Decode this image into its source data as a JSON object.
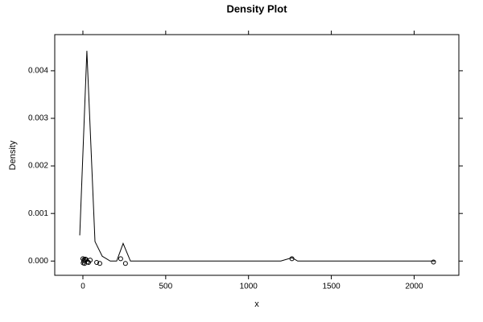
{
  "chart_data": {
    "type": "density",
    "title": "Density Plot",
    "xlabel": "x",
    "ylabel": "Density",
    "xlim": [
      -170,
      2270
    ],
    "ylim": [
      -0.0003,
      0.00476
    ],
    "xticks": [
      0,
      500,
      1000,
      1500,
      2000
    ],
    "yticks": [
      {
        "value": 0,
        "label": "0.000"
      },
      {
        "value": 0.001,
        "label": "0.001"
      },
      {
        "value": 0.002,
        "label": "0.002"
      },
      {
        "value": 0.003,
        "label": "0.003"
      },
      {
        "value": 0.004,
        "label": "0.004"
      }
    ],
    "color": "#000000",
    "density": {
      "x": [
        -19,
        24,
        73,
        117,
        165,
        204,
        243,
        287,
        1195,
        1263,
        1297,
        2130
      ],
      "y": [
        0.00054,
        0.00442,
        0.00041,
        0.0001,
        0,
        0,
        0.00037,
        0,
        0,
        7e-05,
        0,
        0
      ]
    },
    "points": {
      "x": [
        0,
        2,
        5,
        8,
        10,
        15,
        20,
        27,
        34,
        44,
        83,
        102,
        228,
        257,
        1262,
        2117
      ],
      "y": [
        5e-05,
        -4e-05,
        0,
        3e-05,
        -5e-05,
        4e-05,
        3e-05,
        -2e-05,
        -3e-05,
        2e-05,
        -3e-05,
        -5e-05,
        5e-05,
        -5e-05,
        5e-05,
        -2e-05
      ]
    }
  }
}
